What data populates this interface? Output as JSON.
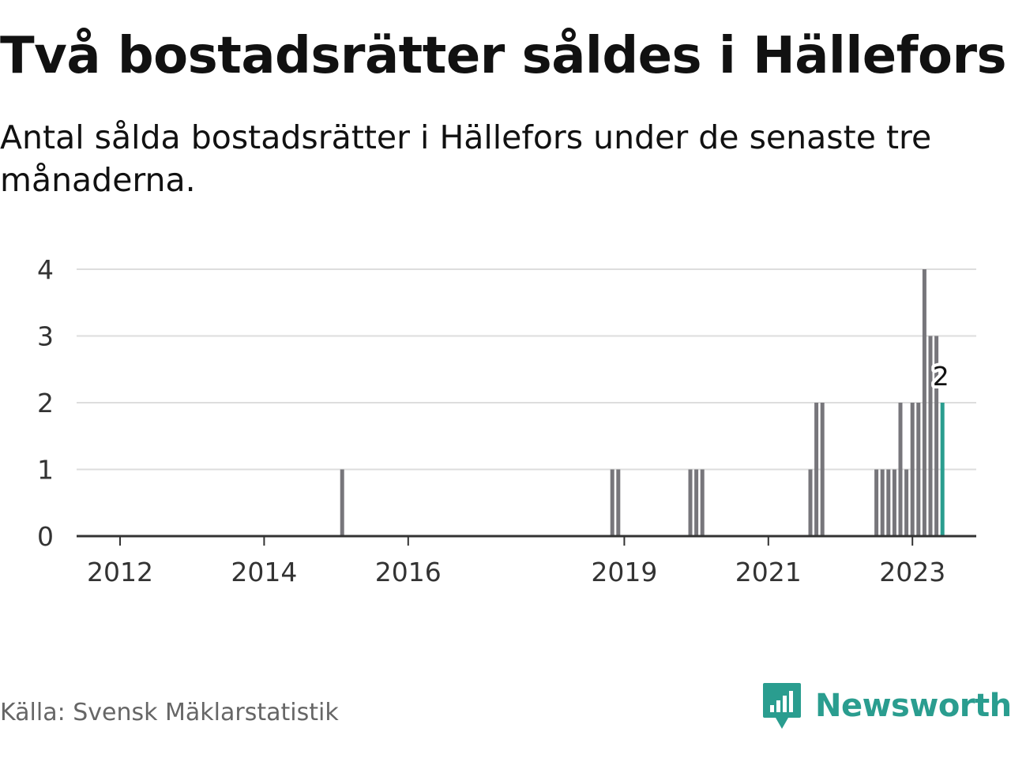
{
  "title": "Två bostadsrätter såldes i Hällefors",
  "subtitle": "Antal sålda bostadsrätter i Hällefors under de senaste tre månaderna.",
  "source": "Källa: Svensk Mäklarstatistik",
  "brand": {
    "name": "Newsworthy",
    "color": "#2a9d8f",
    "icon": "newsworthy-logo-icon"
  },
  "colors": {
    "bar": "#77767b",
    "highlight": "#2a9d8f",
    "grid": "#dddddd",
    "axis": "#333333"
  },
  "chart_data": {
    "type": "bar",
    "title": "Två bostadsrätter såldes i Hällefors",
    "subtitle": "Antal sålda bostadsrätter i Hällefors under de senaste tre månaderna.",
    "xlabel": "",
    "ylabel": "",
    "ylim": [
      0,
      4
    ],
    "yticks": [
      0,
      1,
      2,
      3,
      4
    ],
    "xticks": [
      "2012",
      "2014",
      "2016",
      "2019",
      "2021",
      "2023"
    ],
    "grid": true,
    "legend": "none",
    "x": [
      "2015-02",
      "2018-11",
      "2018-12",
      "2019-12",
      "2020-01",
      "2020-02",
      "2021-08",
      "2021-09",
      "2021-10",
      "2022-07",
      "2022-08",
      "2022-09",
      "2022-10",
      "2022-11",
      "2022-12",
      "2023-01",
      "2023-02",
      "2023-03",
      "2023-04",
      "2023-05"
    ],
    "values": [
      1,
      1,
      1,
      1,
      1,
      1,
      1,
      2,
      2,
      1,
      1,
      1,
      1,
      2,
      1,
      2,
      2,
      4,
      3,
      3
    ],
    "highlight": {
      "x": "2023-06",
      "value": 2,
      "label": "2"
    }
  }
}
